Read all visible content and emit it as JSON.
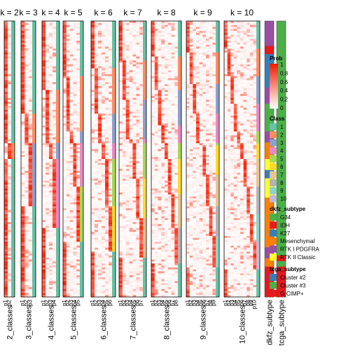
{
  "chart_data": {
    "type": "heatmap",
    "panels": [
      {
        "title": "k = 2",
        "row_label": "2_classes",
        "columns": [
          "p1",
          "p2"
        ],
        "class_colors": [
          "#66C2A5",
          "#FC8D62"
        ]
      },
      {
        "title": "k = 3",
        "row_label": "3_classes",
        "columns": [
          "p1",
          "p2",
          "p3"
        ],
        "class_colors": [
          "#66C2A5",
          "#FC8D62",
          "#8DA0CB"
        ]
      },
      {
        "title": "k = 4",
        "row_label": "4_classes",
        "columns": [
          "p1",
          "p2",
          "p3",
          "p4"
        ],
        "class_colors": [
          "#66C2A5",
          "#FC8D62",
          "#8DA0CB",
          "#E78AC3"
        ]
      },
      {
        "title": "k = 5",
        "row_label": "5_classes",
        "columns": [
          "p1",
          "p2",
          "p3",
          "p4",
          "p5"
        ],
        "class_colors": [
          "#66C2A5",
          "#FC8D62",
          "#8DA0CB",
          "#E78AC3",
          "#A6D854"
        ]
      },
      {
        "title": "k = 6",
        "row_label": "6_classes",
        "columns": [
          "p1",
          "p2",
          "p3",
          "p4",
          "p5",
          "p6"
        ],
        "class_colors": [
          "#66C2A5",
          "#FC8D62",
          "#8DA0CB",
          "#E78AC3",
          "#A6D854",
          "#FFD92F"
        ]
      },
      {
        "title": "k = 7",
        "row_label": "7_classes",
        "columns": [
          "p1",
          "p2",
          "p3",
          "p4",
          "p5",
          "p6",
          "p7"
        ],
        "class_colors": [
          "#66C2A5",
          "#FC8D62",
          "#8DA0CB",
          "#E78AC3",
          "#A6D854",
          "#FFD92F",
          "#E5C494"
        ]
      },
      {
        "title": "k = 8",
        "row_label": "8_classes",
        "columns": [
          "p1",
          "p2",
          "p3",
          "p4",
          "p5",
          "p6",
          "p7",
          "p8"
        ],
        "class_colors": [
          "#66C2A5",
          "#FC8D62",
          "#8DA0CB",
          "#E78AC3",
          "#A6D854",
          "#FFD92F",
          "#E5C494",
          "#B3B3B3"
        ]
      },
      {
        "title": "k = 9",
        "row_label": "9_classes",
        "columns": [
          "p1",
          "p2",
          "p3",
          "p4",
          "p5",
          "p6",
          "p7",
          "p8",
          "p9"
        ],
        "class_colors": [
          "#66C2A5",
          "#FC8D62",
          "#8DA0CB",
          "#E78AC3",
          "#A6D854",
          "#FFD92F",
          "#E5C494",
          "#B3B3B3",
          "#8DD3C7"
        ]
      },
      {
        "title": "k = 10",
        "row_label": "10_classes",
        "columns": [
          "p1",
          "p2",
          "p3",
          "p4",
          "p5",
          "p6",
          "p7",
          "p8",
          "p9",
          "p10"
        ],
        "class_colors": [
          "#66C2A5",
          "#FC8D62",
          "#8DA0CB",
          "#E78AC3",
          "#A6D854",
          "#FFD92F",
          "#E5C494",
          "#B3B3B3",
          "#8DD3C7",
          "#BEBADA"
        ]
      }
    ],
    "annotations": [
      {
        "label": "dkfz_subtype",
        "segments": [
          {
            "value": "RTK I PDGFRA",
            "fraction": 0.09
          },
          {
            "value": "IDH",
            "fraction": 0.03
          },
          {
            "value": "K27",
            "fraction": 0.12
          },
          {
            "value": "RTK I PDGFRA",
            "fraction": 0.06
          },
          {
            "value": "G34",
            "fraction": 0.1
          },
          {
            "value": "RTK I PDGFRA",
            "fraction": 0.04
          },
          {
            "value": "Mesenchymal",
            "fraction": 0.06
          },
          {
            "value": "RTK II Classic",
            "fraction": 0.04
          },
          {
            "value": "K27",
            "fraction": 0.03
          },
          {
            "value": "RTK II Classic",
            "fraction": 0.07
          },
          {
            "value": "Mesenchymal",
            "fraction": 0.18
          },
          {
            "value": "RTK I PDGFRA",
            "fraction": 0.04
          },
          {
            "value": "Mesenchymal",
            "fraction": 0.03
          },
          {
            "value": "IDH",
            "fraction": 0.11
          }
        ]
      },
      {
        "label": "tcga_subtype",
        "segments": [
          {
            "value": "Cluster #3",
            "fraction": 0.85
          },
          {
            "value": "G-CIMP+",
            "fraction": 0.02
          },
          {
            "value": "Cluster #3",
            "fraction": 0.02
          },
          {
            "value": "G-CIMP+",
            "fraction": 0.11
          }
        ]
      }
    ],
    "legends": {
      "prob": {
        "title": "Prob",
        "ticks": [
          "1",
          "0.8",
          "0.6",
          "0.4",
          "0.2",
          "0"
        ],
        "colors": [
          "#ffffff",
          "#EE1D00"
        ]
      },
      "class": {
        "title": "Class",
        "items": [
          {
            "label": "1",
            "color": "#66C2A5"
          },
          {
            "label": "2",
            "color": "#FC8D62"
          },
          {
            "label": "3",
            "color": "#8DA0CB"
          },
          {
            "label": "4",
            "color": "#E78AC3"
          },
          {
            "label": "5",
            "color": "#A6D854"
          },
          {
            "label": "6",
            "color": "#FFD92F"
          },
          {
            "label": "7",
            "color": "#E5C494"
          },
          {
            "label": "8",
            "color": "#B3B3B3"
          },
          {
            "label": "9",
            "color": "#8DD3C7"
          },
          {
            "label": "10",
            "color": "#BEBADA"
          }
        ]
      },
      "dkfz_subtype": {
        "title": "dkfz_subtype",
        "items": [
          {
            "label": "G34",
            "color": "#4DAF4A"
          },
          {
            "label": "IDH",
            "color": "#E41A1C"
          },
          {
            "label": "K27",
            "color": "#377EB8"
          },
          {
            "label": "Mesenchymal",
            "color": "#FF7F00"
          },
          {
            "label": "RTK I PDGFRA",
            "color": "#984EA3"
          },
          {
            "label": "RTK II Classic",
            "color": "#FFFF33"
          }
        ]
      },
      "tcga_subtype": {
        "title": "tcga_subtype",
        "items": [
          {
            "label": "Cluster #2",
            "color": "#377EB8"
          },
          {
            "label": "Cluster #3",
            "color": "#4DAF4A"
          },
          {
            "label": "G-CIMP+",
            "color": "#E41A1C"
          }
        ]
      }
    }
  }
}
